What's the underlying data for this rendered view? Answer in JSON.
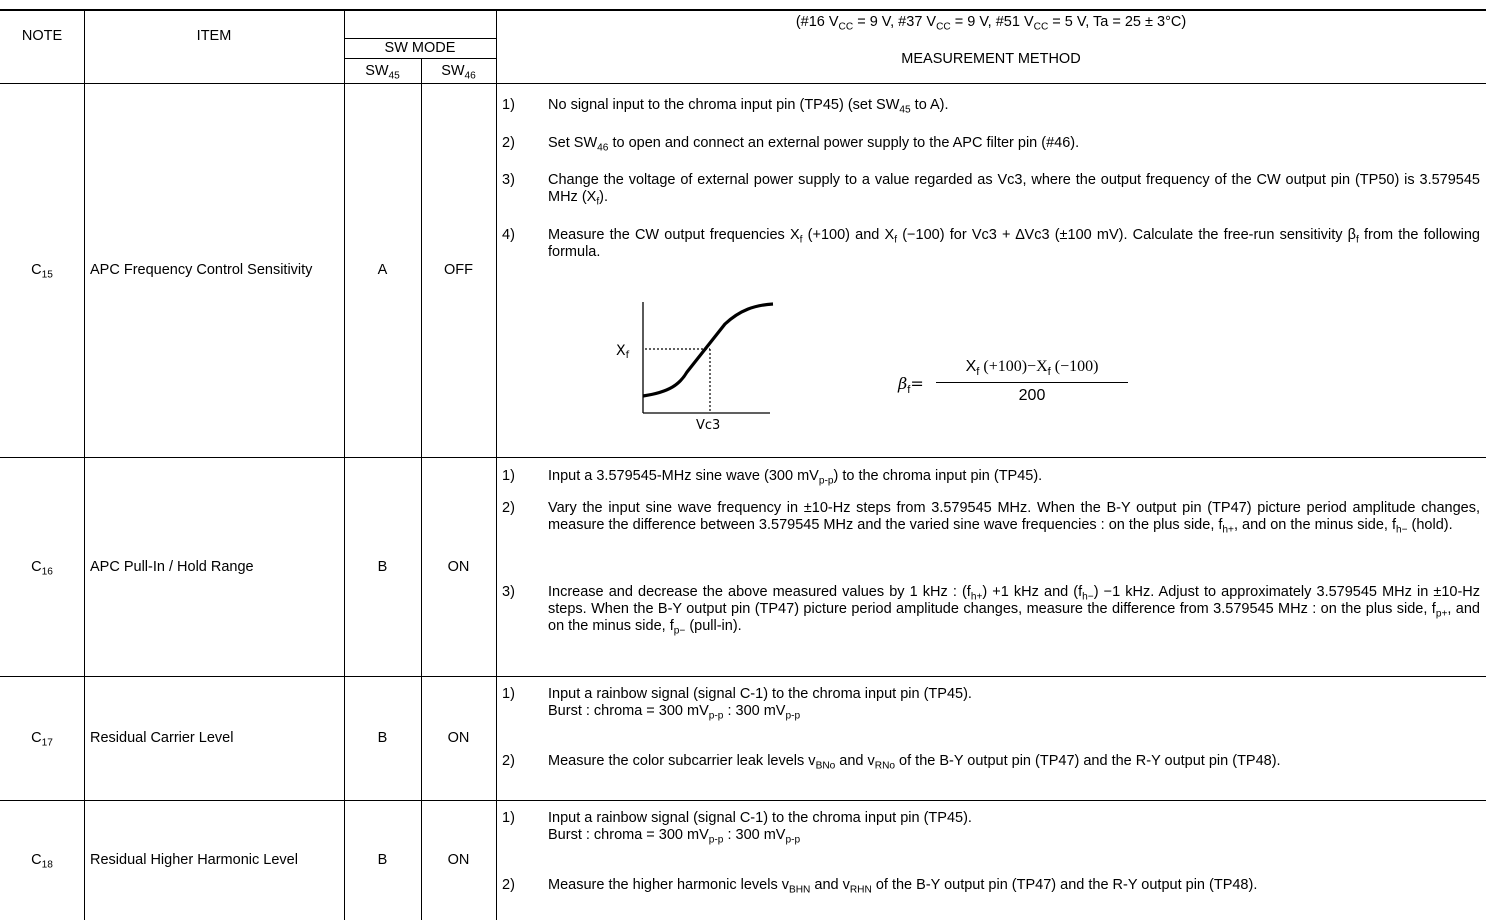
{
  "conditions": {
    "p1": "(#16 V",
    "s1": "CC",
    "p2": " = 9 V, #37 V",
    "s2": "CC",
    "p3": " = 9 V, #51 V",
    "s3": "CC",
    "p4": " = 5 V, Ta = 25 ± 3°C)"
  },
  "headers": {
    "note": "NOTE",
    "item": "ITEM",
    "sw_mode": "SW MODE",
    "sw45": "SW",
    "sw45_sub": "45",
    "sw46": "SW",
    "sw46_sub": "46",
    "method": "MEASUREMENT METHOD"
  },
  "rows": [
    {
      "note": "C",
      "note_sub": "15",
      "item": "APC Frequency Control Sensitivity",
      "sw45": "A",
      "sw46": "OFF",
      "steps": [
        {
          "n": "1)",
          "a": "No signal input to the chroma input pin (TP45) (set SW",
          "s": "45",
          "b": " to A)."
        },
        {
          "n": "2)",
          "a": "Set SW",
          "s": "46",
          "b": " to open and connect an external power supply to the APC filter pin (#46)."
        },
        {
          "n": "3)",
          "a": "Change the voltage of external power supply to a value regarded as Vc3, where the output frequency of the CW output pin (TP50) is 3.579545 MHz (X",
          "s": "f",
          "b": ")."
        },
        {
          "n": "4)",
          "a": "Measure the CW output frequencies X",
          "s": "f",
          "b": " (+100) and X",
          "s2": "f",
          "c": " (−100) for Vc3 + ∆Vc3 (±100 mV). Calculate the free-run sensitivity β",
          "s3": "f",
          "d": " from the following formula."
        }
      ],
      "graph": {
        "y_label": "X",
        "y_label_sub": "f",
        "x_label": "Vc3"
      },
      "formula": {
        "lhs": "β",
        "lhs_sub": "f",
        "eq": "=",
        "num_a": "X",
        "num_a_sub": "f",
        "num_b": " (+100)−X",
        "num_b_sub": "f",
        "num_c": " (−100)",
        "den": "200"
      }
    },
    {
      "note": "C",
      "note_sub": "16",
      "item": "APC Pull-In / Hold Range",
      "sw45": "B",
      "sw46": "ON",
      "steps": [
        {
          "n": "1)",
          "a": "Input a 3.579545-MHz sine wave (300 mV",
          "s": "p-p",
          "b": ") to the chroma input pin (TP45)."
        },
        {
          "n": "2)",
          "a": "Vary the input sine wave frequency in ±10-Hz steps from 3.579545 MHz. When the B-Y output pin (TP47) picture period amplitude changes, measure the difference between 3.579545 MHz and the varied sine wave frequencies : on the plus side, f",
          "s": "h+",
          "b": ", and on the minus side, f",
          "s2": "h−",
          "c": " (hold)."
        },
        {
          "n": "3)",
          "a": "Increase and decrease the above measured values by 1 kHz : (f",
          "s": "h+",
          "b": ") +1 kHz and (f",
          "s2": "h−",
          "c": ") −1 kHz. Adjust to approximately 3.579545 MHz in ±10-Hz steps. When the B-Y output pin (TP47) picture period amplitude changes, measure the difference from 3.579545 MHz : on the plus side, f",
          "s3": "p+",
          "d": ", and on the minus side, f",
          "s4": "p−",
          "e": " (pull-in)."
        }
      ]
    },
    {
      "note": "C",
      "note_sub": "17",
      "item": "Residual Carrier Level",
      "sw45": "B",
      "sw46": "ON",
      "steps": [
        {
          "n": "1)",
          "a": "Input a rainbow signal (signal C-1) to the chroma input pin (TP45).",
          "l2a": "Burst : chroma = 300 mV",
          "l2s": "p-p",
          "l2b": " : 300 mV",
          "l2s2": "p-p"
        },
        {
          "n": "2)",
          "a": "Measure the color subcarrier leak levels v",
          "s": "BNo",
          "b": " and v",
          "s2": "RNo",
          "c": " of the B-Y output pin (TP47) and the R-Y output pin (TP48)."
        }
      ]
    },
    {
      "note": "C",
      "note_sub": "18",
      "item": "Residual Higher Harmonic Level",
      "sw45": "B",
      "sw46": "ON",
      "steps": [
        {
          "n": "1)",
          "a": "Input a rainbow signal (signal C-1) to the chroma input pin (TP45).",
          "l2a": "Burst : chroma = 300 mV",
          "l2s": "p-p",
          "l2b": " : 300 mV",
          "l2s2": "p-p"
        },
        {
          "n": "2)",
          "a": "Measure the higher harmonic levels v",
          "s": "BHN",
          "b": " and v",
          "s2": "RHN",
          "c": " of the B-Y output pin (TP47) and the R-Y output pin (TP48)."
        }
      ]
    }
  ]
}
